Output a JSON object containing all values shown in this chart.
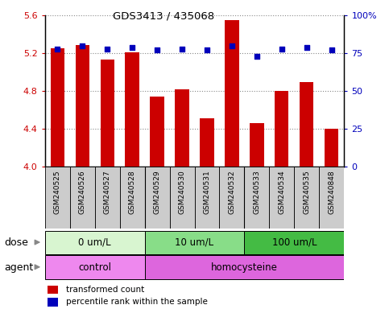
{
  "title": "GDS3413 / 435068",
  "samples": [
    "GSM240525",
    "GSM240526",
    "GSM240527",
    "GSM240528",
    "GSM240529",
    "GSM240530",
    "GSM240531",
    "GSM240532",
    "GSM240533",
    "GSM240534",
    "GSM240535",
    "GSM240848"
  ],
  "transformed_count": [
    5.25,
    5.29,
    5.13,
    5.21,
    4.74,
    4.82,
    4.51,
    5.55,
    4.46,
    4.8,
    4.9,
    4.4
  ],
  "percentile_rank": [
    78,
    80,
    78,
    79,
    77,
    78,
    77,
    80,
    73,
    78,
    79,
    77
  ],
  "ylim_left": [
    4.0,
    5.6
  ],
  "ylim_right": [
    0,
    100
  ],
  "yticks_left": [
    4.0,
    4.4,
    4.8,
    5.2,
    5.6
  ],
  "yticks_right": [
    0,
    25,
    50,
    75,
    100
  ],
  "bar_color": "#cc0000",
  "dot_color": "#0000bb",
  "bar_width": 0.55,
  "dose_groups": [
    {
      "label": "0 um/L",
      "start": 0,
      "end": 4,
      "color": "#d8f5d0"
    },
    {
      "label": "10 um/L",
      "start": 4,
      "end": 8,
      "color": "#88dd88"
    },
    {
      "label": "100 um/L",
      "start": 8,
      "end": 12,
      "color": "#44bb44"
    }
  ],
  "agent_groups": [
    {
      "label": "control",
      "start": 0,
      "end": 4,
      "color": "#ee88ee"
    },
    {
      "label": "homocysteine",
      "start": 4,
      "end": 12,
      "color": "#dd66dd"
    }
  ],
  "dose_label": "dose",
  "agent_label": "agent",
  "legend_bar_label": "transformed count",
  "legend_dot_label": "percentile rank within the sample",
  "grid_color": "#888888",
  "tick_label_color_left": "#cc0000",
  "tick_label_color_right": "#0000bb",
  "background_plot": "#ffffff",
  "background_sample": "#cccccc",
  "group_line_color": "#000000"
}
